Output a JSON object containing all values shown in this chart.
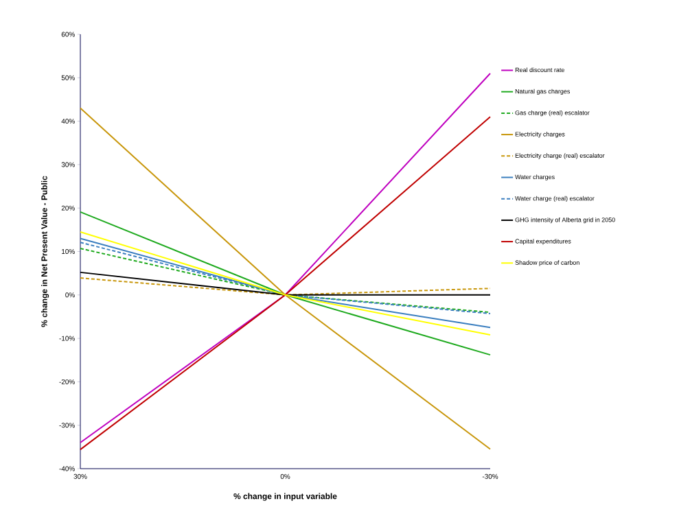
{
  "chart_data": {
    "type": "line",
    "xlabel": "% change in input variable",
    "ylabel": "% change in Net Present Value - Public",
    "categories": [
      "30%",
      "0%",
      "-30%"
    ],
    "ylim": [
      -40,
      60
    ],
    "yticks": [
      {
        "value": -40,
        "label": "-40%"
      },
      {
        "value": -30,
        "label": "-30%"
      },
      {
        "value": -20,
        "label": "-20%"
      },
      {
        "value": -10,
        "label": "-10%"
      },
      {
        "value": 0,
        "label": "0%"
      },
      {
        "value": 10,
        "label": "10%"
      },
      {
        "value": 20,
        "label": "20%"
      },
      {
        "value": 30,
        "label": "30%"
      },
      {
        "value": 40,
        "label": "40%"
      },
      {
        "value": 50,
        "label": "50%"
      },
      {
        "value": 60,
        "label": "60%"
      }
    ],
    "grid": false,
    "legend": "right",
    "marker": "none",
    "series": [
      {
        "name": "Real discount rate",
        "color": "#bf00bf",
        "line_style": "solid",
        "values": [
          -34,
          0,
          51
        ]
      },
      {
        "name": "Natural gas charges",
        "color": "#1faa1f",
        "line_style": "solid",
        "values": [
          19.1,
          0,
          -13.8
        ]
      },
      {
        "name": "Gas charge (real) escalator",
        "color": "#1faa1f",
        "line_style": "dashed",
        "values": [
          10.7,
          0,
          -4
        ]
      },
      {
        "name": "Electricity charges",
        "color": "#c8960a",
        "line_style": "solid",
        "values": [
          43,
          0,
          -35.5
        ]
      },
      {
        "name": "Electricity charge (real) escalator",
        "color": "#c8960a",
        "line_style": "dashed",
        "values": [
          3.9,
          0,
          1.5
        ]
      },
      {
        "name": "Water charges",
        "color": "#3a7ebf",
        "line_style": "solid",
        "values": [
          13,
          0,
          -7.5
        ]
      },
      {
        "name": "Water charge (real) escalator",
        "color": "#3a7ebf",
        "line_style": "dashed",
        "values": [
          12.1,
          0,
          -4.3
        ]
      },
      {
        "name": "GHG intensity of Alberta grid in 2050",
        "color": "#000000",
        "line_style": "solid",
        "values": [
          5.2,
          0,
          0
        ]
      },
      {
        "name": "Capital expenditures",
        "color": "#c00000",
        "line_style": "solid",
        "values": [
          -35.6,
          0,
          41
        ]
      },
      {
        "name": "Shadow price of carbon",
        "color": "#ffff00",
        "line_style": "solid",
        "values": [
          14.5,
          0,
          -9.2
        ]
      }
    ]
  }
}
